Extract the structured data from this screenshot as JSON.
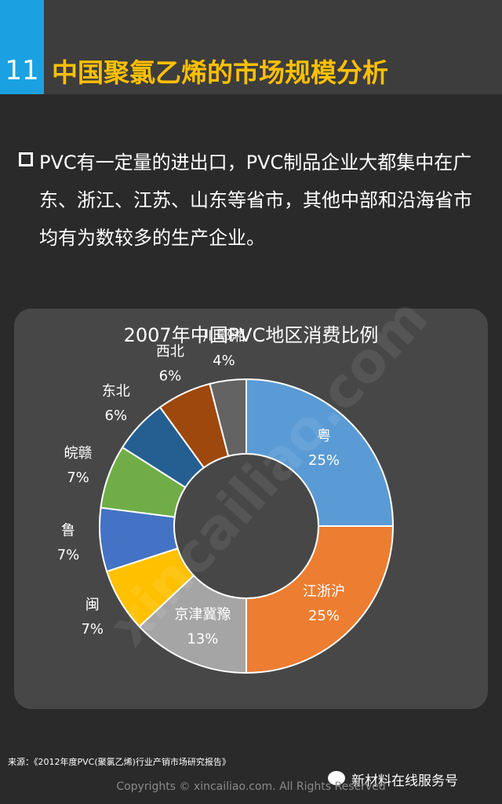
{
  "header": {
    "number": "11",
    "title": "中国聚氯乙烯的市场规模分析"
  },
  "bullet": "PVC有一定量的进出口，PVC制品企业大都集中在广东、浙江、江苏、山东等省市，其他中部和沿海省市均有为数较多的生产企业。",
  "chart_data": {
    "type": "pie",
    "donut": true,
    "title": "2007年中国PVC地区消费比例",
    "categories": [
      "粤",
      "江浙沪",
      "京津冀豫",
      "闽",
      "鲁",
      "皖赣",
      "东北",
      "西北",
      "川鄂湘"
    ],
    "values": [
      25,
      25,
      13,
      7,
      7,
      7,
      6,
      6,
      4
    ],
    "value_labels": [
      "25%",
      "25%",
      "13%",
      "7%",
      "7%",
      "7%",
      "6%",
      "6%",
      "4%"
    ],
    "colors": [
      "#5b9bd5",
      "#ed7d31",
      "#a5a5a5",
      "#ffc000",
      "#4472c4",
      "#70ad47",
      "#255e91",
      "#9e480e",
      "#636363"
    ]
  },
  "source": "来源：《2012年度PVC(聚氯乙烯)行业产销市场研究报告》",
  "wechat": "新材料在线服务号",
  "copyright": "Copyrights © xincailiao.com. All Rights Reserved",
  "watermark": "xincailiao.com"
}
